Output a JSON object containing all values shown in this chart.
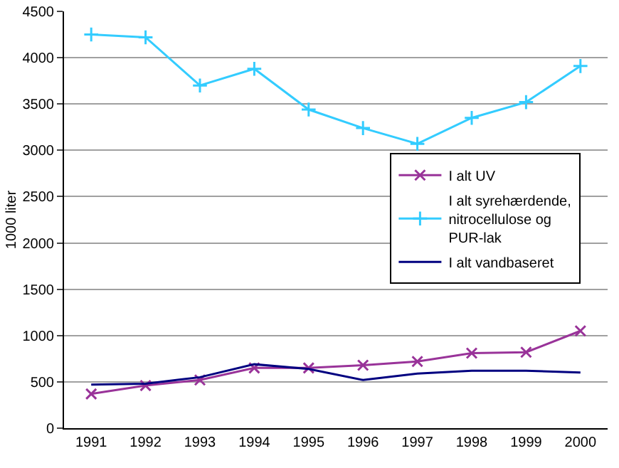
{
  "chart_data": {
    "type": "line",
    "ylabel": "1000 liter",
    "categories": [
      "1991",
      "1992",
      "1993",
      "1994",
      "1995",
      "1996",
      "1997",
      "1998",
      "1999",
      "2000"
    ],
    "series": [
      {
        "name": "I alt UV",
        "color": "#993399",
        "marker": "cross",
        "values": [
          370,
          460,
          520,
          650,
          650,
          680,
          720,
          810,
          820,
          1050
        ]
      },
      {
        "name": "I alt syrehærdende, nitrocellulose og PUR-lak",
        "color": "#33ccff",
        "marker": "plus",
        "values": [
          4250,
          4220,
          3700,
          3880,
          3440,
          3240,
          3070,
          3350,
          3520,
          3910
        ]
      },
      {
        "name": "I alt vandbaseret",
        "color": "#000080",
        "marker": "none",
        "values": [
          470,
          480,
          550,
          690,
          640,
          520,
          590,
          620,
          620,
          600
        ]
      }
    ],
    "ylim": [
      0,
      4500
    ],
    "yticks": [
      0,
      500,
      1000,
      1500,
      2000,
      2500,
      3000,
      3500,
      4000,
      4500
    ],
    "grid": "y",
    "legend": "right"
  }
}
